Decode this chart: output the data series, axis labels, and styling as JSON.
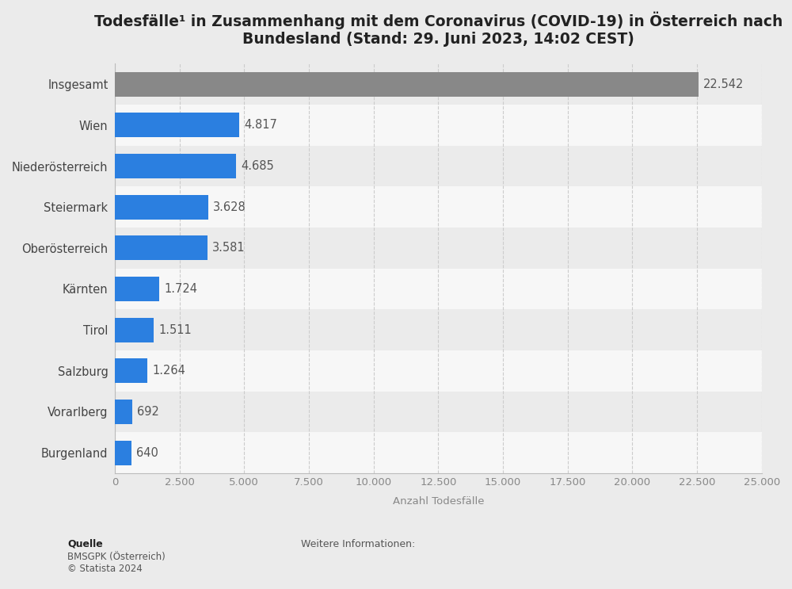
{
  "title": "Todesfälle¹ in Zusammenhang mit dem Coronavirus (COVID-19) in Österreich nach\nBundesland (Stand: 29. Juni 2023, 14:02 CEST)",
  "categories": [
    "Insgesamt",
    "Wien",
    "Niederösterreich",
    "Steiermark",
    "Oberösterreich",
    "Kärnten",
    "Tirol",
    "Salzburg",
    "Vorarlberg",
    "Burgenland"
  ],
  "values": [
    22542,
    4817,
    4685,
    3628,
    3581,
    1724,
    1511,
    1264,
    692,
    640
  ],
  "bar_colors": [
    "#888888",
    "#2b7fe0",
    "#2b7fe0",
    "#2b7fe0",
    "#2b7fe0",
    "#2b7fe0",
    "#2b7fe0",
    "#2b7fe0",
    "#2b7fe0",
    "#2b7fe0"
  ],
  "value_labels": [
    "22.542",
    "4.817",
    "4.685",
    "3.628",
    "3.581",
    "1.724",
    "1.511",
    "1.264",
    "692",
    "640"
  ],
  "xlabel": "Anzahl Todesfälle",
  "xlim": [
    0,
    25000
  ],
  "xticks": [
    0,
    2500,
    5000,
    7500,
    10000,
    12500,
    15000,
    17500,
    20000,
    22500,
    25000
  ],
  "xtick_labels": [
    "0",
    "2.500",
    "5.000",
    "7.500",
    "10.000",
    "12.500",
    "15.000",
    "17.500",
    "20.000",
    "22.500",
    "25.000"
  ],
  "background_color": "#ebebeb",
  "plot_bg_color": "#f7f7f7",
  "stripe_color_odd": "#ebebeb",
  "stripe_color_even": "#f7f7f7",
  "title_fontsize": 13.5,
  "label_fontsize": 10.5,
  "tick_fontsize": 9.5,
  "value_label_fontsize": 10.5,
  "source_label": "Quelle",
  "source_body": "BMSGPK (Österreich)\n© Statista 2024",
  "weitereinfo_text": "Weitere Informationen:",
  "bar_height": 0.6
}
